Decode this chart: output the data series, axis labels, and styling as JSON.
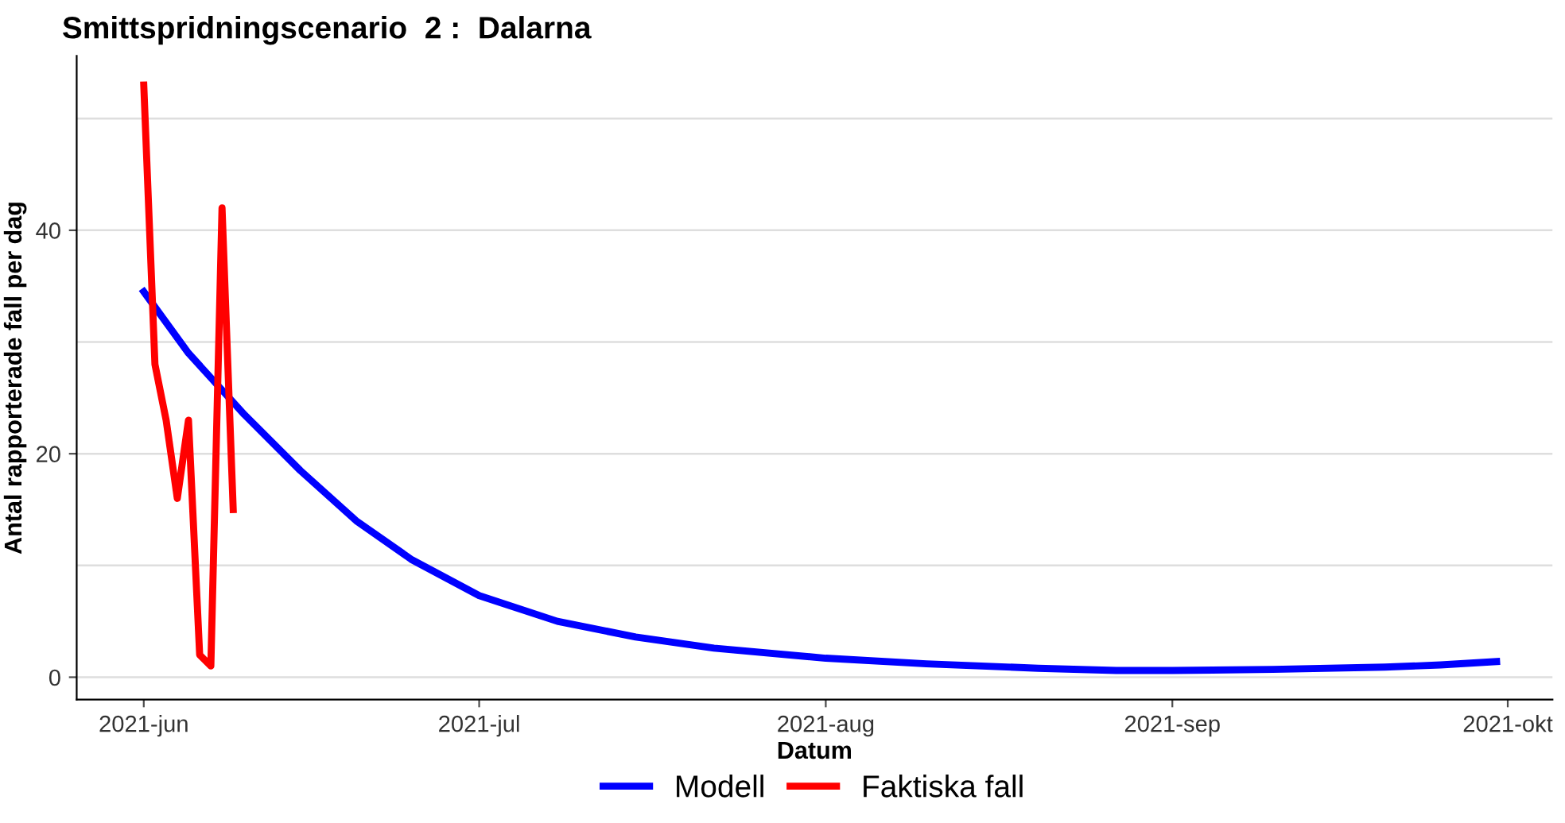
{
  "chart_data": {
    "type": "line",
    "title": "Smittspridningscenario  2 :  Dalarna",
    "xlabel": "Datum",
    "ylabel": "Antal rapporterade fall per dag",
    "series": [
      {
        "name": "Modell",
        "color": "#0000ff",
        "x": [
          "2021-06-01",
          "2021-06-05",
          "2021-06-10",
          "2021-06-15",
          "2021-06-20",
          "2021-06-25",
          "2021-07-01",
          "2021-07-08",
          "2021-07-15",
          "2021-07-22",
          "2021-08-01",
          "2021-08-10",
          "2021-08-20",
          "2021-08-27",
          "2021-09-01",
          "2021-09-10",
          "2021-09-20",
          "2021-09-25",
          "2021-09-30"
        ],
        "values": [
          34.5,
          29.0,
          23.5,
          18.5,
          14.0,
          10.5,
          7.3,
          5.0,
          3.6,
          2.6,
          1.7,
          1.2,
          0.8,
          0.6,
          0.6,
          0.7,
          0.9,
          1.1,
          1.4
        ]
      },
      {
        "name": "Faktiska fall",
        "color": "#ff0000",
        "x": [
          "2021-06-01",
          "2021-06-02",
          "2021-06-03",
          "2021-06-04",
          "2021-06-05",
          "2021-06-06",
          "2021-06-07",
          "2021-06-08",
          "2021-06-09"
        ],
        "values": [
          53,
          28,
          23,
          16,
          23,
          2,
          1,
          42,
          15
        ]
      }
    ],
    "xlim": [
      "2021-05-26",
      "2021-10-05"
    ],
    "xticks": [
      {
        "value": "2021-06-01",
        "label": "2021-jun"
      },
      {
        "value": "2021-07-01",
        "label": "2021-jul"
      },
      {
        "value": "2021-08-01",
        "label": "2021-aug"
      },
      {
        "value": "2021-09-01",
        "label": "2021-sep"
      },
      {
        "value": "2021-10-01",
        "label": "2021-okt"
      }
    ],
    "ylim": [
      -2,
      55.6
    ],
    "yticks": [
      0,
      {
        "value": 10,
        "label": null
      },
      20,
      {
        "value": 30,
        "label": null
      },
      40,
      {
        "value": 50,
        "label": null
      }
    ],
    "grid": "y",
    "legend": "bottom",
    "line_style": "solid",
    "marker": "none"
  }
}
